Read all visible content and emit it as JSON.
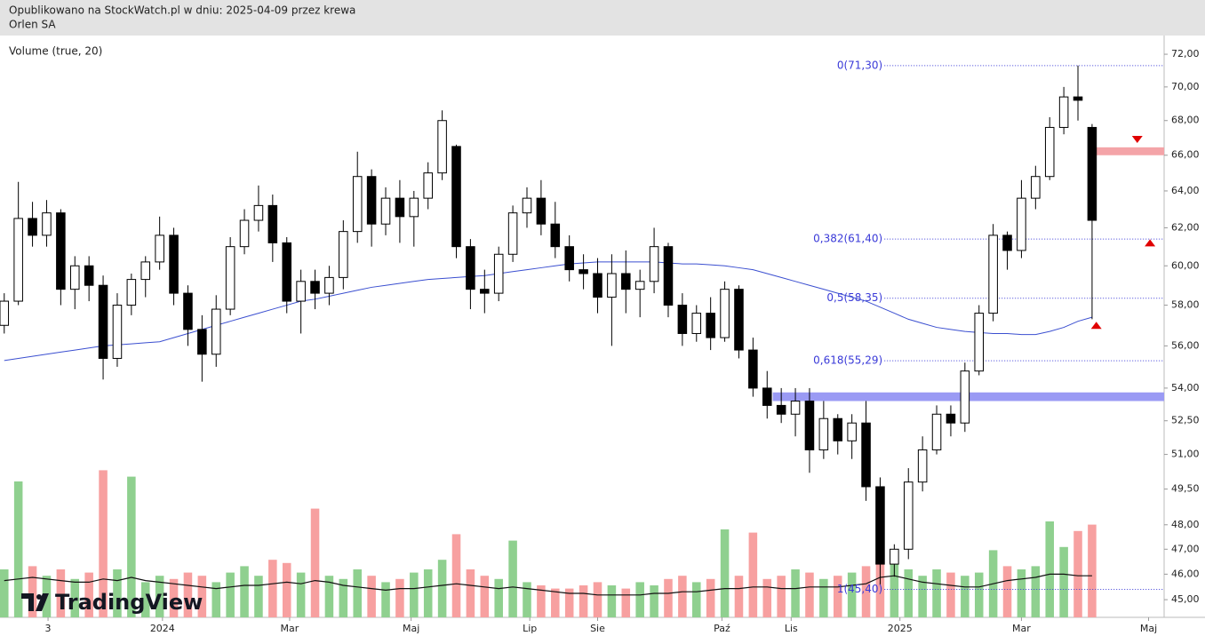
{
  "chart_data": {
    "type": "candlestick",
    "title": "Opublikowano na StockWatch.pl w dniu: 2025-04-09 przez krewa",
    "subtitle": "Orlen SA",
    "indicator_label": "Volume (true, 20)",
    "logo": "TradingView",
    "log_scale": true,
    "xlim": [
      -0.3,
      82.1
    ],
    "ylim": [
      44.32,
      73.17
    ],
    "yticks": [
      {
        "value": 45,
        "label": "45,00"
      },
      {
        "value": 46,
        "label": "46,00"
      },
      {
        "value": 47,
        "label": "47,00"
      },
      {
        "value": 48,
        "label": "48,00"
      },
      {
        "value": 49.5,
        "label": "49,50"
      },
      {
        "value": 51,
        "label": "51,00"
      },
      {
        "value": 52.5,
        "label": "52,50"
      },
      {
        "value": 54,
        "label": "54,00"
      },
      {
        "value": 56,
        "label": "56,00"
      },
      {
        "value": 58,
        "label": "58,00"
      },
      {
        "value": 60,
        "label": "60,00"
      },
      {
        "value": 62,
        "label": "62,00"
      },
      {
        "value": 64,
        "label": "64,00"
      },
      {
        "value": 66,
        "label": "66,00"
      },
      {
        "value": 68,
        "label": "68,00"
      },
      {
        "value": 70,
        "label": "70,00"
      },
      {
        "value": 72,
        "label": "72,00"
      }
    ],
    "xticks": [
      {
        "value": 3.1,
        "label": "3"
      },
      {
        "value": 11.2,
        "label": "2024"
      },
      {
        "value": 20.2,
        "label": "Mar"
      },
      {
        "value": 28.8,
        "label": "Maj"
      },
      {
        "value": 37.2,
        "label": "Lip"
      },
      {
        "value": 42,
        "label": "Sie"
      },
      {
        "value": 50.8,
        "label": "Paź"
      },
      {
        "value": 55.7,
        "label": "Lis"
      },
      {
        "value": 63.4,
        "label": "2025"
      },
      {
        "value": 72,
        "label": "Mar"
      },
      {
        "value": 81,
        "label": "Maj"
      }
    ],
    "x": [
      0,
      1,
      2,
      3,
      4,
      5,
      6,
      7,
      8,
      9,
      10,
      11,
      12,
      13,
      14,
      15,
      16,
      17,
      18,
      19,
      20,
      21,
      22,
      23,
      24,
      25,
      26,
      27,
      28,
      29,
      30,
      31,
      32,
      33,
      34,
      35,
      36,
      37,
      38,
      39,
      40,
      41,
      42,
      43,
      44,
      45,
      46,
      47,
      48,
      49,
      50,
      51,
      52,
      53,
      54,
      55,
      56,
      57,
      58,
      59,
      60,
      61,
      62,
      63,
      64,
      65,
      66,
      67,
      68,
      69,
      70,
      71,
      72,
      73,
      74,
      75,
      76,
      77
    ],
    "ohlc": [
      [
        57.0,
        58.6,
        56.6,
        58.2
      ],
      [
        58.2,
        64.5,
        58.0,
        62.5
      ],
      [
        62.5,
        63.4,
        61.0,
        61.6
      ],
      [
        61.6,
        63.5,
        61.0,
        62.8
      ],
      [
        62.8,
        63.0,
        58.0,
        58.8
      ],
      [
        58.8,
        60.5,
        57.8,
        60.0
      ],
      [
        60.0,
        60.5,
        58.2,
        59.0
      ],
      [
        59.0,
        59.5,
        54.4,
        55.4
      ],
      [
        55.4,
        58.6,
        55.0,
        58.0
      ],
      [
        58.0,
        59.6,
        57.5,
        59.3
      ],
      [
        59.3,
        60.5,
        58.4,
        60.2
      ],
      [
        60.2,
        62.6,
        59.8,
        61.6
      ],
      [
        61.6,
        62.0,
        58.0,
        58.6
      ],
      [
        58.6,
        59.0,
        56.0,
        56.8
      ],
      [
        56.8,
        57.5,
        54.3,
        55.6
      ],
      [
        55.6,
        58.5,
        55.0,
        57.8
      ],
      [
        57.8,
        61.5,
        57.5,
        61.0
      ],
      [
        61.0,
        63.0,
        60.6,
        62.4
      ],
      [
        62.4,
        64.3,
        61.8,
        63.2
      ],
      [
        63.2,
        63.8,
        60.2,
        61.2
      ],
      [
        61.2,
        61.5,
        57.6,
        58.2
      ],
      [
        58.2,
        59.8,
        56.6,
        59.2
      ],
      [
        59.2,
        59.8,
        57.8,
        58.6
      ],
      [
        58.6,
        60.0,
        58.0,
        59.4
      ],
      [
        59.4,
        62.4,
        58.8,
        61.8
      ],
      [
        61.8,
        66.2,
        61.2,
        64.8
      ],
      [
        64.8,
        65.2,
        61.0,
        62.2
      ],
      [
        62.2,
        64.2,
        61.6,
        63.6
      ],
      [
        63.6,
        64.6,
        61.2,
        62.6
      ],
      [
        62.6,
        64.0,
        61.0,
        63.6
      ],
      [
        63.6,
        65.6,
        63.0,
        65.0
      ],
      [
        65.0,
        68.6,
        64.6,
        68.0
      ],
      [
        66.5,
        66.6,
        60.4,
        61.0
      ],
      [
        61.0,
        61.4,
        57.8,
        58.8
      ],
      [
        58.8,
        59.8,
        57.6,
        58.6
      ],
      [
        58.6,
        61.0,
        58.2,
        60.6
      ],
      [
        60.6,
        63.2,
        60.2,
        62.8
      ],
      [
        62.8,
        64.2,
        62.0,
        63.6
      ],
      [
        63.6,
        64.6,
        61.6,
        62.2
      ],
      [
        62.2,
        63.4,
        60.4,
        61.0
      ],
      [
        61.0,
        61.6,
        59.2,
        59.8
      ],
      [
        59.8,
        60.6,
        58.8,
        59.6
      ],
      [
        59.6,
        60.4,
        57.6,
        58.4
      ],
      [
        58.4,
        60.6,
        56.0,
        59.6
      ],
      [
        59.6,
        60.8,
        57.6,
        58.8
      ],
      [
        58.8,
        59.8,
        57.4,
        59.2
      ],
      [
        59.2,
        62.0,
        58.6,
        61.0
      ],
      [
        61.0,
        61.2,
        57.4,
        58.0
      ],
      [
        58.0,
        58.6,
        56.0,
        56.6
      ],
      [
        56.6,
        58.0,
        56.2,
        57.6
      ],
      [
        57.6,
        58.4,
        55.8,
        56.4
      ],
      [
        56.4,
        59.2,
        56.2,
        58.8
      ],
      [
        58.8,
        59.0,
        55.4,
        55.8
      ],
      [
        55.8,
        56.4,
        53.6,
        54.0
      ],
      [
        54.0,
        54.8,
        52.6,
        53.2
      ],
      [
        53.2,
        54.0,
        52.4,
        52.8
      ],
      [
        52.8,
        54.0,
        51.8,
        53.4
      ],
      [
        53.4,
        54.0,
        50.2,
        51.2
      ],
      [
        51.2,
        53.4,
        50.8,
        52.6
      ],
      [
        52.6,
        52.8,
        51.0,
        51.6
      ],
      [
        51.6,
        52.8,
        50.8,
        52.4
      ],
      [
        52.4,
        53.4,
        49.0,
        49.6
      ],
      [
        49.6,
        50.0,
        45.6,
        46.4
      ],
      [
        46.4,
        47.2,
        45.9,
        47.0
      ],
      [
        47.0,
        50.4,
        46.6,
        49.8
      ],
      [
        49.8,
        51.8,
        49.4,
        51.2
      ],
      [
        51.2,
        53.2,
        51.0,
        52.8
      ],
      [
        52.8,
        53.2,
        51.8,
        52.4
      ],
      [
        52.4,
        55.2,
        52.0,
        54.8
      ],
      [
        54.8,
        58.0,
        54.6,
        57.6
      ],
      [
        57.6,
        62.2,
        57.2,
        61.6
      ],
      [
        61.6,
        61.8,
        59.8,
        60.8
      ],
      [
        60.8,
        64.6,
        60.4,
        63.6
      ],
      [
        63.6,
        65.4,
        63.0,
        64.8
      ],
      [
        64.8,
        68.2,
        64.6,
        67.6
      ],
      [
        67.6,
        70.0,
        67.2,
        69.4
      ],
      [
        69.4,
        71.3,
        68.0,
        69.2
      ],
      [
        67.6,
        67.8,
        57.3,
        62.4
      ]
    ],
    "ma": [
      55.3,
      55.4,
      55.5,
      55.6,
      55.7,
      55.8,
      55.9,
      56.0,
      56.05,
      56.1,
      56.15,
      56.2,
      56.4,
      56.6,
      56.8,
      57.0,
      57.2,
      57.4,
      57.6,
      57.8,
      58.0,
      58.2,
      58.3,
      58.45,
      58.6,
      58.75,
      58.9,
      59.0,
      59.1,
      59.2,
      59.3,
      59.35,
      59.4,
      59.45,
      59.5,
      59.6,
      59.7,
      59.8,
      59.9,
      60.0,
      60.1,
      60.15,
      60.2,
      60.2,
      60.2,
      60.2,
      60.2,
      60.15,
      60.1,
      60.1,
      60.05,
      60.0,
      59.9,
      59.8,
      59.6,
      59.4,
      59.2,
      59.0,
      58.8,
      58.6,
      58.4,
      58.2,
      57.9,
      57.6,
      57.3,
      57.1,
      56.9,
      56.8,
      56.7,
      56.65,
      56.6,
      56.6,
      56.55,
      56.55,
      56.7,
      56.9,
      57.2,
      57.4
    ],
    "ma_color": "#3b4fd0",
    "volume_lim": [
      0,
      10
    ],
    "volume": [
      3.0,
      8.5,
      3.2,
      2.6,
      3.0,
      2.4,
      2.8,
      9.2,
      3.0,
      8.8,
      2.2,
      2.6,
      2.4,
      2.8,
      2.6,
      2.2,
      2.8,
      3.2,
      2.6,
      3.6,
      3.4,
      2.8,
      6.8,
      2.6,
      2.4,
      3.0,
      2.6,
      2.2,
      2.4,
      2.8,
      3.0,
      3.6,
      5.2,
      3.0,
      2.6,
      2.4,
      4.8,
      2.2,
      2.0,
      1.8,
      1.8,
      2.0,
      2.2,
      2.0,
      1.8,
      2.2,
      2.0,
      2.4,
      2.6,
      2.2,
      2.4,
      5.5,
      2.6,
      5.3,
      2.4,
      2.6,
      3.0,
      2.8,
      2.4,
      2.6,
      2.8,
      3.2,
      5.0,
      4.0,
      3.0,
      2.6,
      3.0,
      2.8,
      2.6,
      2.8,
      4.2,
      3.2,
      3.0,
      3.2,
      6.0,
      4.4,
      5.4,
      5.8
    ],
    "volume_ma": [
      2.3,
      2.4,
      2.5,
      2.4,
      2.3,
      2.2,
      2.2,
      2.4,
      2.3,
      2.5,
      2.3,
      2.2,
      2.1,
      2.0,
      1.9,
      1.8,
      1.9,
      2.0,
      2.0,
      2.1,
      2.2,
      2.1,
      2.3,
      2.2,
      2.0,
      1.9,
      1.8,
      1.7,
      1.8,
      1.8,
      1.9,
      2.0,
      2.1,
      2.0,
      1.9,
      1.8,
      1.9,
      1.8,
      1.7,
      1.6,
      1.5,
      1.5,
      1.4,
      1.4,
      1.4,
      1.4,
      1.5,
      1.5,
      1.6,
      1.6,
      1.7,
      1.8,
      1.8,
      1.9,
      1.9,
      1.8,
      1.8,
      1.9,
      1.9,
      1.9,
      2.0,
      2.1,
      2.5,
      2.6,
      2.4,
      2.2,
      2.1,
      2.0,
      1.9,
      1.9,
      2.1,
      2.3,
      2.4,
      2.5,
      2.7,
      2.7,
      2.6,
      2.6
    ],
    "up_volume_color": "#8fd08f",
    "down_volume_color": "#f7a0a0",
    "fib_levels": [
      {
        "value": 71.3,
        "label": "0(71,30)"
      },
      {
        "value": 61.4,
        "label": "0,382(61,40)"
      },
      {
        "value": 58.35,
        "label": "0,5(58,35)"
      },
      {
        "value": 55.29,
        "label": "0,618(55,29)"
      },
      {
        "value": 45.4,
        "label": "1(45,40)"
      }
    ],
    "fib_start": 62.3,
    "fib_color": "#3a3ad8",
    "zones": [
      {
        "from": 66.0,
        "to": 66.45,
        "start": 76.7,
        "color": "#f4a4a8"
      },
      {
        "from": 53.4,
        "to": 53.8,
        "start": 54.4,
        "color": "#9a9af4"
      }
    ],
    "markers": [
      {
        "x": 80.2,
        "value": 66.9,
        "dir": "down"
      },
      {
        "x": 81.1,
        "value": 61.2,
        "dir": "up"
      },
      {
        "x": 77.3,
        "value": 57.0,
        "dir": "up"
      }
    ],
    "marker_color": "#e00000"
  }
}
